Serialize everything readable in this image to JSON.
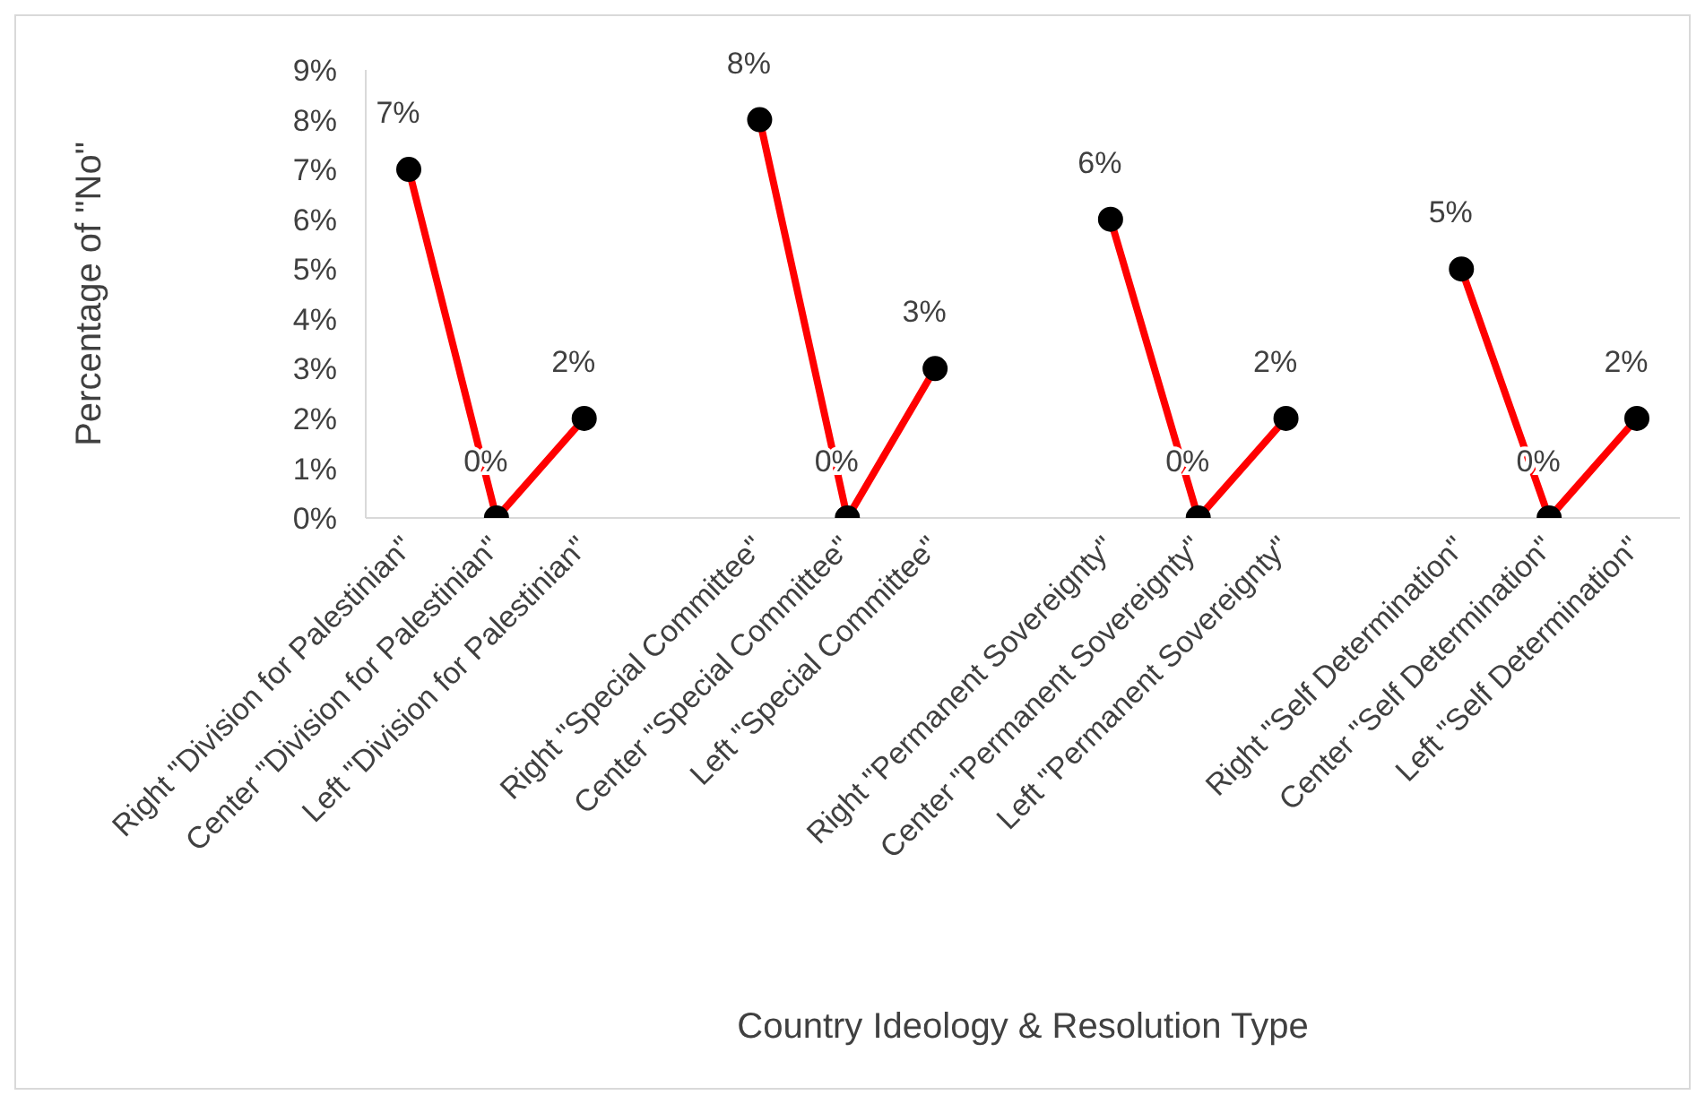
{
  "chart_data": {
    "type": "line",
    "xlabel": "Country Ideology & Resolution Type",
    "ylabel": "Percentage of \"No\"",
    "categories": [
      "Right \"Division for Palestinian\"",
      "Center \"Division for Palestinian\"",
      "Left \"Division for Palestinian\"",
      null,
      "Right \"Special Committee\"",
      "Center \"Special Committee\"",
      "Left \"Special Committee\"",
      null,
      "Right \"Permanent Sovereignty\"",
      "Center \"Permanent Sovereignty\"",
      "Left \"Permanent Sovereignty\"",
      null,
      "Right \"Self Determination\"",
      "Center \"Self Determination\"",
      "Left \"Self Determination\""
    ],
    "series": [
      {
        "color": "#ff0000",
        "values": [
          7,
          0,
          2,
          null,
          8,
          0,
          3,
          null,
          6,
          0,
          2,
          null,
          5,
          0,
          2
        ],
        "value_labels": [
          "7%",
          "0%",
          "2%",
          null,
          "8%",
          "0%",
          "3%",
          null,
          "6%",
          "0%",
          "2%",
          null,
          "5%",
          "0%",
          "2%"
        ]
      }
    ],
    "ylim": [
      0,
      9
    ],
    "yticks": [
      {
        "value": 0,
        "label": "0%"
      },
      {
        "value": 1,
        "label": "1%"
      },
      {
        "value": 2,
        "label": "2%"
      },
      {
        "value": 3,
        "label": "3%"
      },
      {
        "value": 4,
        "label": "4%"
      },
      {
        "value": 5,
        "label": "5%"
      },
      {
        "value": 6,
        "label": "6%"
      },
      {
        "value": 7,
        "label": "7%"
      },
      {
        "value": 8,
        "label": "8%"
      },
      {
        "value": 9,
        "label": "9%"
      }
    ],
    "marker": "circle",
    "line_style": "solid",
    "grid": false,
    "legend": false
  }
}
